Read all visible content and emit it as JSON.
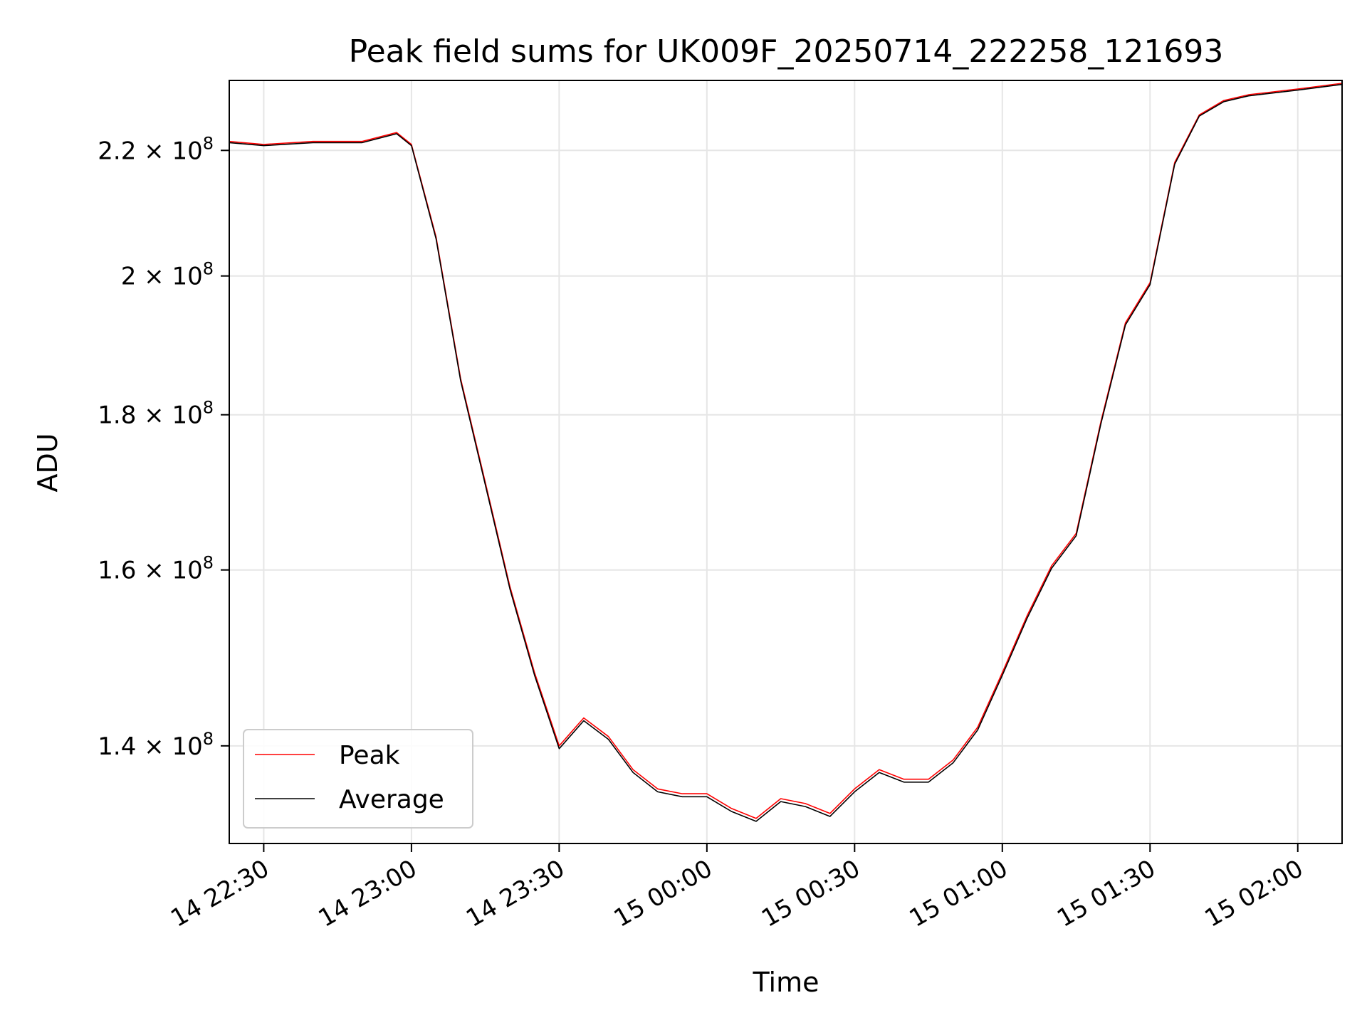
{
  "chart_data": {
    "type": "line",
    "title": "Peak field sums for UK009F_20250714_222258_121693",
    "xlabel": "Time",
    "ylabel": "ADU",
    "yscale": "log",
    "grid": true,
    "legend_position": "lower-left",
    "xlim": [
      "14 22:23",
      "15 02:09"
    ],
    "ylim": [
      130000000,
      232000000
    ],
    "x_ticks": [
      "14 22:30",
      "14 23:00",
      "14 23:30",
      "15 00:00",
      "15 00:30",
      "15 01:00",
      "15 01:30",
      "15 02:00"
    ],
    "y_ticks": [
      {
        "value": 140000000,
        "mantissa": "1.4"
      },
      {
        "value": 160000000,
        "mantissa": "1.6"
      },
      {
        "value": 180000000,
        "mantissa": "1.8"
      },
      {
        "value": 200000000,
        "mantissa": "2"
      },
      {
        "value": 220000000,
        "mantissa": "2.2"
      }
    ],
    "y_tick_exponent": "8",
    "x": [
      "14 22:23",
      "14 22:30",
      "14 22:40",
      "14 22:50",
      "14 22:57",
      "14 23:00",
      "14 23:05",
      "14 23:10",
      "14 23:15",
      "14 23:20",
      "14 23:25",
      "14 23:30",
      "14 23:35",
      "14 23:40",
      "14 23:45",
      "14 23:50",
      "14 23:55",
      "15 00:00",
      "15 00:05",
      "15 00:10",
      "15 00:15",
      "15 00:20",
      "15 00:25",
      "15 00:30",
      "15 00:35",
      "15 00:40",
      "15 00:45",
      "15 00:50",
      "15 00:55",
      "15 01:00",
      "15 01:05",
      "15 01:10",
      "15 01:15",
      "15 01:20",
      "15 01:25",
      "15 01:30",
      "15 01:35",
      "15 01:40",
      "15 01:45",
      "15 01:50",
      "15 02:00",
      "15 02:09"
    ],
    "series": [
      {
        "name": "Peak",
        "color": "#ff0000",
        "values": [
          221500000,
          221000000,
          221500000,
          221500000,
          223000000,
          221000000,
          206000000,
          185000000,
          171000000,
          158000000,
          148000000,
          140000000,
          143000000,
          141000000,
          137500000,
          135500000,
          135000000,
          135000000,
          133500000,
          132500000,
          134500000,
          134000000,
          133000000,
          135500000,
          137500000,
          136500000,
          136500000,
          138500000,
          142000000,
          148000000,
          154500000,
          160500000,
          164500000,
          179000000,
          193000000,
          199000000,
          218000000,
          226000000,
          228500000,
          229500000,
          230500000,
          231500000
        ]
      },
      {
        "name": "Average",
        "color": "#000000",
        "values": [
          221300000,
          220800000,
          221300000,
          221300000,
          222800000,
          220800000,
          205700000,
          184700000,
          170700000,
          157700000,
          147700000,
          139700000,
          142700000,
          140700000,
          137200000,
          135200000,
          134700000,
          134700000,
          133200000,
          132200000,
          134200000,
          133700000,
          132700000,
          135200000,
          137200000,
          136200000,
          136200000,
          138200000,
          141700000,
          147700000,
          154200000,
          160200000,
          164200000,
          178700000,
          192700000,
          198700000,
          217700000,
          225800000,
          228300000,
          229300000,
          230300000,
          231300000
        ]
      }
    ]
  }
}
